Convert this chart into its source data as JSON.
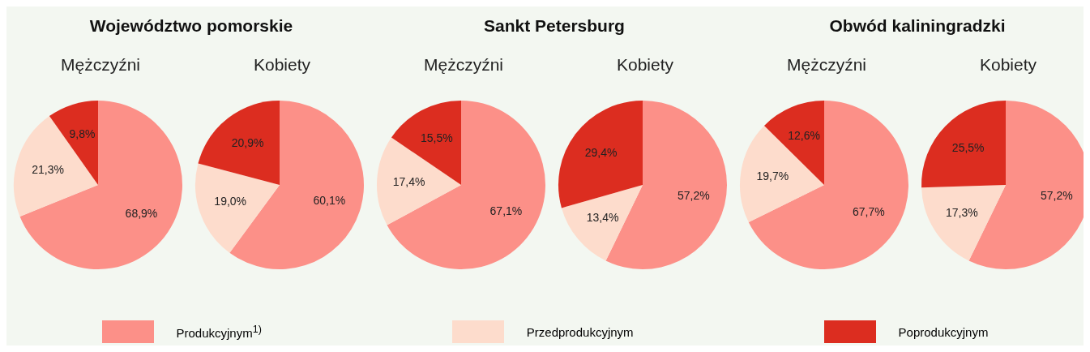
{
  "chart_data": [
    {
      "type": "pie",
      "title": "Województwo pomorskie",
      "subtitle": "Mężczyźni",
      "categories": [
        "Produkcyjnym$^{1)}$",
        "Przedprodukcyjnym",
        "Poprodukcyjnym"
      ],
      "values": [
        68.9,
        21.3,
        9.8
      ],
      "value_labels": [
        "68,9%",
        "21,3%",
        "9,8%"
      ],
      "colors": [
        "#fc9088",
        "#fddccc",
        "#dc2d20"
      ],
      "legend": "bottom"
    },
    {
      "type": "pie",
      "subtitle": "Kobiety",
      "categories": [
        null,
        null,
        null
      ],
      "values": [
        60.1,
        19.0,
        20.9
      ],
      "value_labels": [
        "60,1%",
        "19,0%",
        "20,9%"
      ],
      "colors": [
        "#fc9088",
        "#fddccc",
        "#dc2d20"
      ]
    },
    {
      "type": "pie",
      "title": "Sankt Petersburg",
      "subtitle": "Mężczyźni",
      "categories": [
        null,
        null,
        null
      ],
      "values": [
        67.1,
        17.4,
        15.5
      ],
      "value_labels": [
        "67,1%",
        "17,4%",
        "15,5%"
      ],
      "colors": [
        "#fc9088",
        "#fddccc",
        "#dc2d20"
      ]
    },
    {
      "type": "pie",
      "subtitle": "Kobiety",
      "categories": [
        null,
        null,
        null
      ],
      "values": [
        57.2,
        13.4,
        29.4
      ],
      "value_labels": [
        "57,2%",
        "13,4%",
        "29,4%"
      ],
      "colors": [
        "#fc9088",
        "#fddccc",
        "#dc2d20"
      ]
    },
    {
      "type": "pie",
      "title": "Obwód kaliningradzki",
      "subtitle": "Mężczyźni",
      "categories": [
        null,
        null,
        null
      ],
      "values": [
        67.7,
        19.7,
        12.6
      ],
      "value_labels": [
        "67,7%",
        "19,7%",
        "12,6%"
      ],
      "colors": [
        "#fc9088",
        "#fddccc",
        "#dc2d20"
      ]
    },
    {
      "type": "pie",
      "subtitle": "Kobiety",
      "categories": [
        null,
        null,
        null
      ],
      "values": [
        57.2,
        17.3,
        25.5
      ],
      "value_labels": [
        "57,2%",
        "17,3%",
        "25,5%"
      ],
      "colors": [
        "#fc9088",
        "#fddccc",
        "#dc2d20"
      ]
    }
  ]
}
